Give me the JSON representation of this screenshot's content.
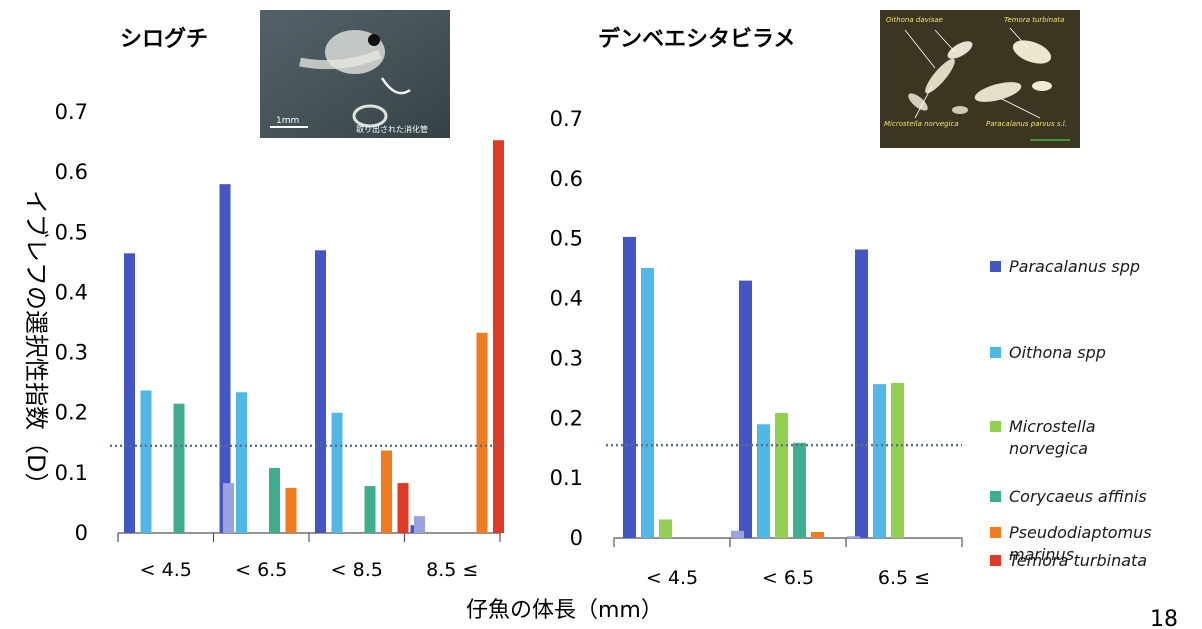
{
  "page_number": "18",
  "xlabel": "仔魚の体長（mm）",
  "ylabel": "イブレフの選択性指数（D）",
  "photo1": {
    "scale_label": "1mm",
    "caption": "取り出された消化管"
  },
  "photo2": {
    "labels": [
      "Oithona davisae",
      "Temora turbinata",
      "Microstella norvegica",
      "Paracalanus parvus s.l."
    ]
  },
  "legend": [
    {
      "name": "Paracalanus spp",
      "lines": [
        "Paracalanus spp"
      ],
      "color": "#4455c4"
    },
    {
      "name": "Oithona spp",
      "lines": [
        "Oithona spp"
      ],
      "color": "#4fb8e6"
    },
    {
      "name": "Microstella norvegica",
      "lines": [
        "Microstella",
        "norvegica"
      ],
      "color": "#92d050"
    },
    {
      "name": "Corycaeus affinis",
      "lines": [
        "Corycaeus affinis"
      ],
      "color": "#3fae8e"
    },
    {
      "name": "Pseudodiaptomus marinus",
      "lines": [
        "Pseudodiaptomus",
        "marinus"
      ],
      "color": "#f07c1e"
    },
    {
      "name": "Temora turbinata",
      "lines": [
        "Temora turbinata"
      ],
      "color": "#e03a26"
    }
  ],
  "chart_data": [
    {
      "type": "bar",
      "title": "シログチ",
      "xlabel": "仔魚の体長（mm）",
      "ylabel": "イブレフの選択性指数（D）",
      "ylim": [
        0,
        0.7
      ],
      "yticks": [
        "0",
        "0.1",
        "0.2",
        "0.3",
        "0.4",
        "0.5",
        "0.6",
        "0.7"
      ],
      "categories": [
        "< 4.5",
        "< 6.5",
        "< 8.5",
        "8.5 ≤"
      ],
      "reference_line": 0.145,
      "series": [
        {
          "name": "Paracalanus spp",
          "color": "#4455c4",
          "values": [
            0.465,
            0.58,
            0.47,
            0.013
          ]
        },
        {
          "name": "Oithona spp",
          "color": "#4fb8e6",
          "values": [
            0.237,
            0.234,
            0.2,
            0
          ]
        },
        {
          "name": "Microstella norvegica",
          "color": "#92d050",
          "values": [
            0,
            0,
            0,
            0
          ]
        },
        {
          "name": "Corycaeus affinis",
          "color": "#3fae8e",
          "values": [
            0.215,
            0.108,
            0.078,
            0
          ]
        },
        {
          "name": "Pseudodiaptomus marinus",
          "color": "#f07c1e",
          "values": [
            0,
            0.075,
            0.137,
            0.333
          ]
        },
        {
          "name": "Temora turbinata",
          "color": "#e03a26",
          "values": [
            0,
            0,
            0.083,
            0.653
          ]
        },
        {
          "name": "",
          "color": "#9aa3e0",
          "values": [
            0.083,
            0,
            0.028,
            0
          ]
        }
      ]
    },
    {
      "type": "bar",
      "title": "デンベエシタビラメ",
      "xlabel": "仔魚の体長（mm）",
      "ylabel": "イブレフの選択性指数（D）",
      "ylim": [
        0,
        0.7
      ],
      "yticks": [
        "0",
        "0.1",
        "0.2",
        "0.3",
        "0.4",
        "0.5",
        "0.6",
        "0.7"
      ],
      "categories": [
        "< 4.5",
        "< 6.5",
        "6.5 ≤"
      ],
      "reference_line": 0.155,
      "series": [
        {
          "name": "Paracalanus spp",
          "color": "#4455c4",
          "values": [
            0.503,
            0.43,
            0.482
          ]
        },
        {
          "name": "Oithona spp",
          "color": "#4fb8e6",
          "values": [
            0.451,
            0.19,
            0.257
          ]
        },
        {
          "name": "Microstella norvegica",
          "color": "#92d050",
          "values": [
            0.031,
            0.209,
            0.259
          ]
        },
        {
          "name": "Corycaeus affinis",
          "color": "#3fae8e",
          "values": [
            0,
            0.159,
            0
          ]
        },
        {
          "name": "Pseudodiaptomus marinus",
          "color": "#f07c1e",
          "values": [
            0,
            0.01,
            0
          ]
        },
        {
          "name": "Temora turbinata",
          "color": "#e03a26",
          "values": [
            0,
            0,
            0
          ]
        },
        {
          "name": "",
          "color": "#9aa3e0",
          "values": [
            0.012,
            0.003,
            0
          ]
        }
      ]
    }
  ]
}
